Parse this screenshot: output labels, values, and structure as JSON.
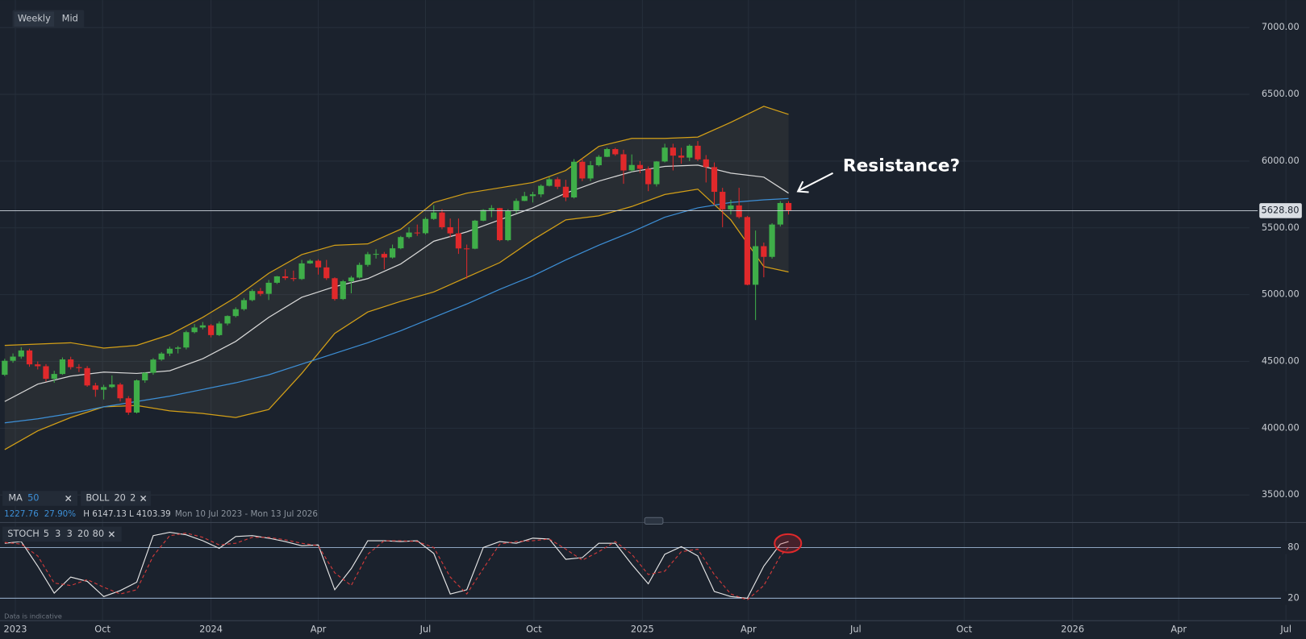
{
  "toolbar": {
    "interval": "Weekly",
    "price": "Mid"
  },
  "chart_data": [
    {
      "type": "candlestick",
      "x": [
        "2023-07-10",
        "2023-07-17",
        "2023-07-24",
        "2023-07-31",
        "2023-08-07",
        "2023-08-14",
        "2023-08-21",
        "2023-08-28",
        "2023-09-04",
        "2023-09-11",
        "2023-09-18",
        "2023-09-25",
        "2023-10-02",
        "2023-10-09",
        "2023-10-16",
        "2023-10-23",
        "2023-10-30",
        "2023-11-06",
        "2023-11-13",
        "2023-11-20",
        "2023-11-27",
        "2023-12-04",
        "2023-12-11",
        "2023-12-18",
        "2023-12-25",
        "2024-01-01",
        "2024-01-08",
        "2024-01-15",
        "2024-01-22",
        "2024-01-29",
        "2024-02-05",
        "2024-02-12",
        "2024-02-19",
        "2024-02-26",
        "2024-03-04",
        "2024-03-11",
        "2024-03-18",
        "2024-03-25",
        "2024-04-01",
        "2024-04-08",
        "2024-04-15",
        "2024-04-22",
        "2024-04-29",
        "2024-05-06",
        "2024-05-13",
        "2024-05-20",
        "2024-05-27",
        "2024-06-03",
        "2024-06-10",
        "2024-06-17",
        "2024-06-24",
        "2024-07-01",
        "2024-07-08",
        "2024-07-15",
        "2024-07-22",
        "2024-07-29",
        "2024-08-05",
        "2024-08-12",
        "2024-08-19",
        "2024-08-26",
        "2024-09-02",
        "2024-09-09",
        "2024-09-16",
        "2024-09-23",
        "2024-09-30",
        "2024-10-07",
        "2024-10-14",
        "2024-10-21",
        "2024-10-28",
        "2024-11-04",
        "2024-11-11",
        "2024-11-18",
        "2024-11-25",
        "2024-12-02",
        "2024-12-09",
        "2024-12-16",
        "2024-12-23",
        "2024-12-30",
        "2025-01-06",
        "2025-01-13",
        "2025-01-20",
        "2025-01-27",
        "2025-02-03",
        "2025-02-10",
        "2025-02-17",
        "2025-02-24",
        "2025-03-03",
        "2025-03-10",
        "2025-03-17",
        "2025-03-24",
        "2025-03-31",
        "2025-04-07",
        "2025-04-14",
        "2025-04-21",
        "2025-04-28",
        "2025-05-05"
      ],
      "open": [
        4400,
        4505,
        4536,
        4582,
        4478,
        4464,
        4370,
        4406,
        4515,
        4457,
        4450,
        4320,
        4288,
        4308,
        4327,
        4224,
        4117,
        4358,
        4415,
        4514,
        4559,
        4595,
        4604,
        4719,
        4754,
        4770,
        4697,
        4784,
        4840,
        4891,
        4959,
        5027,
        5006,
        5089,
        5137,
        5124,
        5117,
        5234,
        5254,
        5204,
        5123,
        4967,
        5100,
        5128,
        5223,
        5303,
        5305,
        5278,
        5347,
        5431,
        5465,
        5460,
        5567,
        5615,
        5505,
        5459,
        5346,
        5344,
        5554,
        5634,
        5648,
        5408,
        5626,
        5702,
        5738,
        5751,
        5815,
        5864,
        5808,
        5728,
        5995,
        5870,
        5969,
        6032,
        6090,
        6051,
        5930,
        5971,
        5942,
        5827,
        5997,
        6101,
        6041,
        6026,
        6115,
        6013,
        5955,
        5770,
        5639,
        5668,
        5581,
        5074,
        5363,
        5283,
        5525,
        5686
      ],
      "high": [
        4520,
        4560,
        4607,
        4595,
        4500,
        4480,
        4430,
        4530,
        4535,
        4480,
        4465,
        4340,
        4325,
        4395,
        4340,
        4240,
        4365,
        4420,
        4525,
        4570,
        4610,
        4615,
        4730,
        4780,
        4795,
        4780,
        4800,
        4845,
        4905,
        4975,
        5040,
        5050,
        5110,
        5140,
        5190,
        5180,
        5260,
        5265,
        5265,
        5260,
        5130,
        5110,
        5140,
        5240,
        5320,
        5340,
        5320,
        5375,
        5440,
        5505,
        5525,
        5580,
        5670,
        5640,
        5570,
        5570,
        5375,
        5560,
        5640,
        5670,
        5650,
        5640,
        5720,
        5770,
        5770,
        5825,
        5880,
        5880,
        5860,
        6015,
        6020,
        6000,
        6045,
        6100,
        6100,
        6085,
        6050,
        6000,
        5960,
        6000,
        6130,
        6130,
        6100,
        6125,
        6150,
        6045,
        5990,
        5800,
        5710,
        5800,
        5590,
        5480,
        5390,
        5535,
        5700,
        5700
      ],
      "low": [
        4390,
        4490,
        4520,
        4460,
        4440,
        4350,
        4340,
        4400,
        4440,
        4420,
        4310,
        4235,
        4215,
        4300,
        4200,
        4100,
        4110,
        4340,
        4400,
        4505,
        4540,
        4560,
        4590,
        4710,
        4740,
        4680,
        4690,
        4770,
        4830,
        4880,
        4950,
        4990,
        4960,
        5080,
        5110,
        5100,
        5110,
        5230,
        5150,
        5110,
        4955,
        4960,
        5010,
        5120,
        5210,
        5270,
        5190,
        5270,
        5340,
        5420,
        5440,
        5450,
        5560,
        5490,
        5430,
        5305,
        5120,
        5340,
        5550,
        5580,
        5400,
        5400,
        5610,
        5700,
        5690,
        5730,
        5810,
        5790,
        5700,
        5720,
        5850,
        5850,
        5960,
        6030,
        6040,
        5830,
        5920,
        5910,
        5775,
        5810,
        5990,
        5930,
        5980,
        6000,
        6000,
        5840,
        5670,
        5505,
        5600,
        5570,
        5070,
        4810,
        5130,
        5270,
        5510,
        5600
      ],
      "close": [
        4505,
        4536,
        4582,
        4478,
        4464,
        4370,
        4406,
        4515,
        4457,
        4450,
        4320,
        4288,
        4308,
        4327,
        4224,
        4117,
        4358,
        4415,
        4514,
        4559,
        4595,
        4604,
        4719,
        4754,
        4770,
        4697,
        4784,
        4840,
        4891,
        4959,
        5027,
        5006,
        5089,
        5137,
        5124,
        5117,
        5234,
        5254,
        5204,
        5123,
        4967,
        5100,
        5128,
        5223,
        5303,
        5305,
        5278,
        5347,
        5431,
        5465,
        5460,
        5567,
        5615,
        5505,
        5459,
        5346,
        5344,
        5554,
        5634,
        5648,
        5408,
        5626,
        5702,
        5738,
        5751,
        5815,
        5864,
        5808,
        5728,
        5995,
        5870,
        5969,
        6032,
        6090,
        6051,
        5930,
        5971,
        5942,
        5827,
        5997,
        6101,
        6041,
        6026,
        6115,
        6013,
        5955,
        5770,
        5639,
        5668,
        5581,
        5074,
        5363,
        5283,
        5525,
        5686,
        5628.8
      ],
      "up_color": "#3fae49",
      "down_color": "#e0292b",
      "last_label": "5628.80",
      "overlays": {
        "x": [
          "2023-07-10",
          "2023-08-07",
          "2023-09-04",
          "2023-10-02",
          "2023-10-30",
          "2023-11-27",
          "2023-12-25",
          "2024-01-22",
          "2024-02-19",
          "2024-03-18",
          "2024-04-15",
          "2024-05-13",
          "2024-06-10",
          "2024-07-08",
          "2024-08-05",
          "2024-09-02",
          "2024-09-30",
          "2024-10-28",
          "2024-11-25",
          "2024-12-23",
          "2025-01-20",
          "2025-02-17",
          "2025-03-17",
          "2025-04-14",
          "2025-05-05"
        ],
        "series": [
          {
            "color": "#d4a017",
            "values": [
              4620,
              4630,
              4640,
              4600,
              4620,
              4700,
              4830,
              4980,
              5160,
              5300,
              5370,
              5380,
              5490,
              5690,
              5760,
              5800,
              5840,
              5930,
              6110,
              6170,
              6170,
              6180,
              6290,
              6410,
              6350
            ]
          },
          {
            "color": "#d8d8d8",
            "values": [
              4200,
              4330,
              4390,
              4420,
              4410,
              4430,
              4520,
              4650,
              4830,
              4980,
              5060,
              5120,
              5230,
              5400,
              5470,
              5560,
              5650,
              5760,
              5850,
              5920,
              5960,
              5970,
              5910,
              5880,
              5760
            ]
          },
          {
            "color": "#d4a017",
            "values": [
              3840,
              3980,
              4080,
              4160,
              4170,
              4130,
              4110,
              4080,
              4140,
              4410,
              4710,
              4870,
              4950,
              5020,
              5130,
              5240,
              5410,
              5560,
              5590,
              5660,
              5750,
              5790,
              5560,
              5210,
              5170
            ]
          },
          {
            "color": "#3d8fd6",
            "values": [
              4040,
              4070,
              4110,
              4160,
              4200,
              4240,
              4290,
              4340,
              4400,
              4480,
              4560,
              4640,
              4730,
              4830,
              4930,
              5040,
              5140,
              5260,
              5370,
              5470,
              5580,
              5650,
              5690,
              5710,
              5720
            ]
          }
        ]
      },
      "legend": {
        "ma": "MA",
        "ma_period": "50",
        "boll": "BOLL",
        "boll_period": "20",
        "boll_dev": "2",
        "readout": [
          "1227.76",
          "27.90%",
          "H 6147.13",
          "L 4103.39"
        ],
        "range": "Mon 10 Jul 2023 - Mon 13 Jul 2026"
      },
      "annotation": "Resistance?",
      "xlim": [
        "2023-07-06",
        "2026-07-18"
      ],
      "xticks": [
        {
          "value": "2023-07-19",
          "label": "2023"
        },
        {
          "value": "2023-10-01",
          "label": "Oct"
        },
        {
          "value": "2024-01-01",
          "label": "2024"
        },
        {
          "value": "2024-04-01",
          "label": "Apr"
        },
        {
          "value": "2024-07-01",
          "label": "Jul"
        },
        {
          "value": "2024-10-01",
          "label": "Oct"
        },
        {
          "value": "2025-01-01",
          "label": "2025"
        },
        {
          "value": "2025-04-01",
          "label": "Apr"
        },
        {
          "value": "2025-07-01",
          "label": "Jul"
        },
        {
          "value": "2025-10-01",
          "label": "Oct"
        },
        {
          "value": "2026-01-01",
          "label": "2026"
        },
        {
          "value": "2026-04-01",
          "label": "Apr"
        },
        {
          "value": "2026-07-01",
          "label": "Jul"
        }
      ],
      "ylim": [
        3300,
        7200
      ],
      "yticks": [
        {
          "value": 3500,
          "label": "3500.00"
        },
        {
          "value": 4000,
          "label": "4000.00"
        },
        {
          "value": 4500,
          "label": "4500.00"
        },
        {
          "value": 5000,
          "label": "5000.00"
        },
        {
          "value": 5500,
          "label": "5500.00"
        },
        {
          "value": 6000,
          "label": "6000.00"
        },
        {
          "value": 6500,
          "label": "6500.00"
        },
        {
          "value": 7000,
          "label": "7000.00"
        }
      ],
      "grid": true
    },
    {
      "type": "line",
      "title": "STOCH",
      "params": [
        "5",
        "3",
        "3",
        "20",
        "80"
      ],
      "x": [
        "2023-07-10",
        "2023-07-24",
        "2023-08-07",
        "2023-08-21",
        "2023-09-04",
        "2023-09-18",
        "2023-10-02",
        "2023-10-16",
        "2023-10-30",
        "2023-11-13",
        "2023-11-27",
        "2023-12-11",
        "2023-12-25",
        "2024-01-08",
        "2024-01-22",
        "2024-02-05",
        "2024-02-19",
        "2024-03-04",
        "2024-03-18",
        "2024-04-01",
        "2024-04-15",
        "2024-04-29",
        "2024-05-13",
        "2024-05-27",
        "2024-06-10",
        "2024-06-24",
        "2024-07-08",
        "2024-07-22",
        "2024-08-05",
        "2024-08-19",
        "2024-09-02",
        "2024-09-16",
        "2024-09-30",
        "2024-10-14",
        "2024-10-28",
        "2024-11-11",
        "2024-11-25",
        "2024-12-09",
        "2024-12-23",
        "2025-01-06",
        "2025-01-20",
        "2025-02-03",
        "2025-02-17",
        "2025-03-03",
        "2025-03-17",
        "2025-03-31",
        "2025-04-14",
        "2025-04-28",
        "2025-05-05"
      ],
      "series": [
        {
          "color": "#e6e6e6",
          "values": [
            85,
            87,
            58,
            26,
            45,
            40,
            22,
            29,
            39,
            94,
            98,
            95,
            88,
            79,
            93,
            94,
            91,
            87,
            82,
            83,
            30,
            55,
            88,
            88,
            87,
            88,
            73,
            25,
            30,
            80,
            87,
            85,
            91,
            90,
            66,
            68,
            85,
            85,
            60,
            37,
            72,
            81,
            70,
            28,
            22,
            20,
            58,
            84,
            87
          ]
        },
        {
          "color": "#d23a3a",
          "dash": true,
          "values": [
            86,
            84,
            70,
            38,
            35,
            42,
            33,
            25,
            30,
            70,
            94,
            97,
            92,
            83,
            85,
            92,
            92,
            89,
            85,
            82,
            50,
            35,
            72,
            88,
            88,
            87,
            80,
            45,
            25,
            55,
            84,
            87,
            88,
            90,
            78,
            65,
            75,
            87,
            72,
            48,
            52,
            75,
            78,
            48,
            25,
            18,
            35,
            70,
            80
          ]
        }
      ],
      "ylim": [
        -5,
        105
      ],
      "yticks": [
        20,
        80
      ],
      "note": "Data is indicative"
    }
  ]
}
